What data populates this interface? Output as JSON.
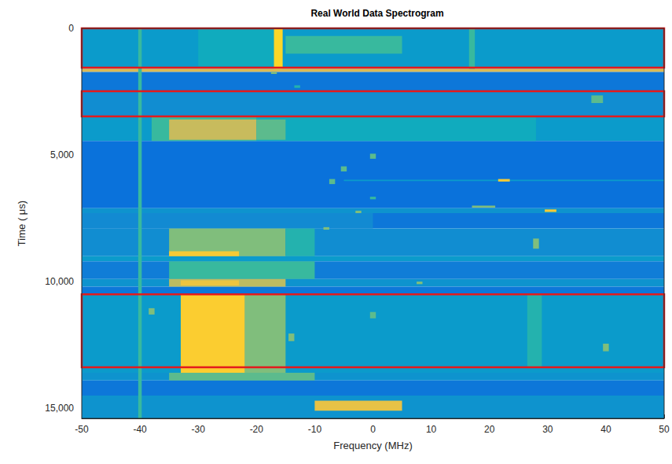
{
  "chart_data": {
    "type": "heatmap",
    "title": "Real World Data Spectrogram",
    "x_label": "Frequency (MHz)",
    "y_label": "Time ( μs)",
    "xlim": [
      -50,
      50
    ],
    "xticks": [
      -50,
      -40,
      -30,
      -20,
      -10,
      0,
      10,
      20,
      30,
      40,
      50
    ],
    "ylim": [
      0,
      15400
    ],
    "yticks": [
      0,
      5000,
      10000,
      15000
    ],
    "grid": false,
    "clim": [
      0,
      1
    ],
    "cells": [
      [
        -50,
        50,
        0,
        1600,
        0.33
      ],
      [
        -50,
        50,
        1600,
        1720,
        0.75
      ],
      [
        -50,
        50,
        1720,
        2480,
        0.2
      ],
      [
        -50,
        50,
        2480,
        3480,
        0.28
      ],
      [
        -50,
        50,
        3480,
        4450,
        0.33
      ],
      [
        -50,
        50,
        4450,
        7100,
        0.18
      ],
      [
        -50,
        50,
        7100,
        7300,
        0.3
      ],
      [
        -50,
        50,
        7300,
        7900,
        0.2
      ],
      [
        -50,
        50,
        7900,
        9000,
        0.28
      ],
      [
        -50,
        50,
        9000,
        9200,
        0.33
      ],
      [
        -50,
        50,
        9200,
        9900,
        0.22
      ],
      [
        -50,
        50,
        9900,
        10200,
        0.3
      ],
      [
        -50,
        50,
        10200,
        10500,
        0.2
      ],
      [
        -50,
        50,
        10500,
        13600,
        0.33
      ],
      [
        -50,
        50,
        13600,
        13900,
        0.3
      ],
      [
        -50,
        50,
        13900,
        14500,
        0.2
      ],
      [
        -50,
        50,
        14500,
        15400,
        0.3
      ],
      [
        -30,
        -17,
        0,
        1500,
        0.4
      ],
      [
        -15,
        5,
        300,
        1000,
        0.5
      ],
      [
        -17,
        -15.5,
        0,
        1600,
        0.9
      ],
      [
        16.5,
        17.5,
        0,
        1600,
        0.5
      ],
      [
        -17.5,
        -16.5,
        1720,
        1800,
        0.6
      ],
      [
        -13.5,
        -12.5,
        2250,
        2350,
        0.45
      ],
      [
        37.5,
        39.5,
        2650,
        2950,
        0.55
      ],
      [
        -20,
        28,
        3480,
        4450,
        0.4
      ],
      [
        -38,
        -20,
        3480,
        4450,
        0.5
      ],
      [
        -35,
        -20,
        3600,
        4400,
        0.72
      ],
      [
        -20,
        -15,
        3600,
        4400,
        0.55
      ],
      [
        -0.5,
        0.5,
        4950,
        5150,
        0.55
      ],
      [
        -5.5,
        -4.5,
        5450,
        5650,
        0.55
      ],
      [
        -7.5,
        -6.5,
        5950,
        6150,
        0.55
      ],
      [
        -5,
        50,
        5980,
        6030,
        0.33
      ],
      [
        21.5,
        23.5,
        5950,
        6050,
        0.85
      ],
      [
        -0.5,
        0.5,
        6650,
        6750,
        0.5
      ],
      [
        -3,
        -2,
        7200,
        7400,
        0.6
      ],
      [
        17,
        21,
        7000,
        7080,
        0.6
      ],
      [
        29.5,
        31.5,
        7150,
        7250,
        0.85
      ],
      [
        -50,
        0,
        7300,
        7900,
        0.27
      ],
      [
        -35,
        -15,
        7900,
        9000,
        0.6
      ],
      [
        -15,
        -10,
        7900,
        9000,
        0.45
      ],
      [
        -8.5,
        -7.5,
        7850,
        7950,
        0.6
      ],
      [
        27.5,
        28.5,
        8300,
        8700,
        0.6
      ],
      [
        -35,
        -23,
        8800,
        9000,
        0.85
      ],
      [
        -35,
        -10,
        9200,
        9900,
        0.5
      ],
      [
        -35,
        -15,
        9900,
        10200,
        0.7
      ],
      [
        -33,
        -23,
        9950,
        10150,
        0.82
      ],
      [
        7.5,
        8.5,
        10000,
        10100,
        0.6
      ],
      [
        -22,
        -15,
        10500,
        13600,
        0.6
      ],
      [
        -33,
        -22,
        10500,
        13600,
        0.87
      ],
      [
        -38.5,
        -37.5,
        11050,
        11300,
        0.6
      ],
      [
        -14.5,
        -13.5,
        12050,
        12350,
        0.6
      ],
      [
        -0.5,
        0.5,
        11200,
        11450,
        0.55
      ],
      [
        26.5,
        29,
        10500,
        13400,
        0.45
      ],
      [
        39.5,
        40.5,
        12450,
        12750,
        0.6
      ],
      [
        -35,
        -10,
        13600,
        13900,
        0.55
      ],
      [
        -10,
        5,
        14700,
        15100,
        0.8
      ],
      [
        -40.3,
        -39.7,
        0,
        15400,
        0.5
      ]
    ],
    "boxes": [
      {
        "xlim": [
          -50,
          50
        ],
        "ylim": [
          0,
          1550
        ],
        "color": "#e41a1c"
      },
      {
        "xlim": [
          -50,
          50
        ],
        "ylim": [
          2480,
          3480
        ],
        "color": "#e41a1c"
      },
      {
        "xlim": [
          -50,
          50
        ],
        "ylim": [
          10500,
          13380
        ],
        "color": "#e41a1c"
      }
    ]
  }
}
